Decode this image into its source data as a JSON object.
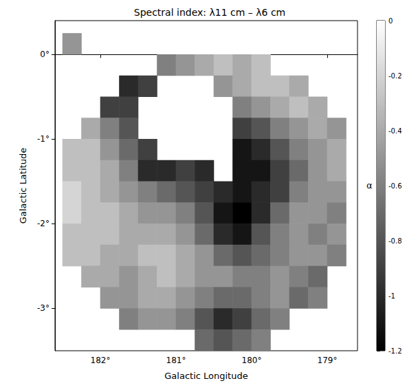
{
  "chart_data": {
    "type": "heatmap",
    "title": "Spectral index: λ11 cm – λ6 cm",
    "x_label": "Galactic Longitude",
    "y_label": "Galactic Latitude",
    "x": [
      182.375,
      182.125,
      181.875,
      181.625,
      181.375,
      181.125,
      180.875,
      180.625,
      180.375,
      180.125,
      179.875,
      179.625,
      179.375,
      179.125,
      178.875
    ],
    "y": [
      0.125,
      -0.125,
      -0.375,
      -0.625,
      -0.875,
      -1.125,
      -1.375,
      -1.625,
      -1.875,
      -2.125,
      -2.375,
      -2.625,
      -2.875,
      -3.125,
      -3.375
    ],
    "values": [
      [
        -0.5,
        null,
        null,
        null,
        null,
        null,
        null,
        null,
        null,
        null,
        null,
        null,
        null,
        null,
        null
      ],
      [
        null,
        null,
        null,
        null,
        null,
        -0.6,
        -0.5,
        -0.4,
        -0.3,
        -0.4,
        -0.3,
        null,
        null,
        null,
        null
      ],
      [
        null,
        null,
        null,
        -1.0,
        -0.9,
        null,
        null,
        null,
        -0.5,
        -0.4,
        -0.3,
        -0.3,
        -0.4,
        null,
        null
      ],
      [
        null,
        null,
        -0.9,
        -0.9,
        null,
        null,
        null,
        null,
        null,
        -0.6,
        -0.5,
        -0.4,
        -0.3,
        -0.4,
        null
      ],
      [
        null,
        -0.4,
        -0.6,
        -0.8,
        null,
        null,
        null,
        null,
        null,
        -0.9,
        -0.8,
        -0.6,
        -0.5,
        -0.4,
        -0.5
      ],
      [
        -0.3,
        -0.3,
        -0.5,
        -0.7,
        -0.9,
        null,
        null,
        null,
        null,
        -1.1,
        -1.0,
        -0.8,
        -0.6,
        -0.5,
        -0.4
      ],
      [
        -0.3,
        -0.3,
        -0.4,
        -0.6,
        -1.0,
        -1.0,
        -0.9,
        -1.0,
        null,
        -1.1,
        -1.1,
        -0.9,
        -0.7,
        -0.5,
        -0.4
      ],
      [
        -0.2,
        -0.3,
        -0.4,
        -0.5,
        -0.6,
        -0.7,
        -0.8,
        -0.9,
        -1.0,
        -1.1,
        -1.0,
        -0.9,
        -0.6,
        -0.5,
        -0.5
      ],
      [
        -0.2,
        -0.3,
        -0.3,
        -0.4,
        -0.5,
        -0.5,
        -0.6,
        -0.8,
        -1.1,
        -1.2,
        -1.0,
        -0.7,
        -0.5,
        -0.5,
        -0.6
      ],
      [
        -0.3,
        -0.3,
        -0.3,
        -0.4,
        -0.4,
        -0.4,
        -0.5,
        -0.7,
        -1.0,
        -1.1,
        -0.8,
        -0.6,
        -0.5,
        -0.6,
        -0.5
      ],
      [
        -0.3,
        -0.3,
        -0.4,
        -0.4,
        -0.3,
        -0.3,
        -0.4,
        -0.5,
        -0.7,
        -0.8,
        -0.7,
        -0.6,
        -0.5,
        -0.5,
        -0.6
      ],
      [
        null,
        -0.4,
        -0.4,
        -0.5,
        -0.4,
        -0.3,
        -0.4,
        -0.5,
        -0.5,
        -0.6,
        -0.6,
        -0.5,
        -0.6,
        -0.7,
        null
      ],
      [
        null,
        null,
        -0.5,
        -0.5,
        -0.4,
        -0.4,
        -0.5,
        -0.6,
        -0.7,
        -0.7,
        -0.6,
        -0.5,
        -0.7,
        -0.6,
        null
      ],
      [
        null,
        null,
        null,
        -0.6,
        -0.5,
        -0.5,
        -0.6,
        -0.8,
        -1.0,
        -0.9,
        -0.7,
        -0.6,
        null,
        null,
        null
      ],
      [
        null,
        null,
        null,
        null,
        null,
        null,
        null,
        -0.7,
        -0.8,
        -0.7,
        -0.6,
        null,
        null,
        null,
        null
      ]
    ],
    "xlim": [
      182.6,
      178.6
    ],
    "xticks": [
      {
        "value": 182,
        "label": "182°"
      },
      {
        "value": 181,
        "label": "181°"
      },
      {
        "value": 180,
        "label": "180°"
      },
      {
        "value": 179,
        "label": "179°"
      }
    ],
    "ylim": [
      -3.5,
      0.4
    ],
    "yticks": [
      {
        "value": 0,
        "label": "0°"
      },
      {
        "value": -1,
        "label": "-1°"
      },
      {
        "value": -2,
        "label": "-2°"
      },
      {
        "value": -3,
        "label": "-3°"
      }
    ],
    "colorbar_label": "α",
    "colorbar_range": [
      -1.2,
      0
    ],
    "colorbar_ticks": [
      -1.2,
      -1,
      -0.8,
      -0.6,
      -0.4,
      -0.2,
      0
    ],
    "grid": false
  }
}
